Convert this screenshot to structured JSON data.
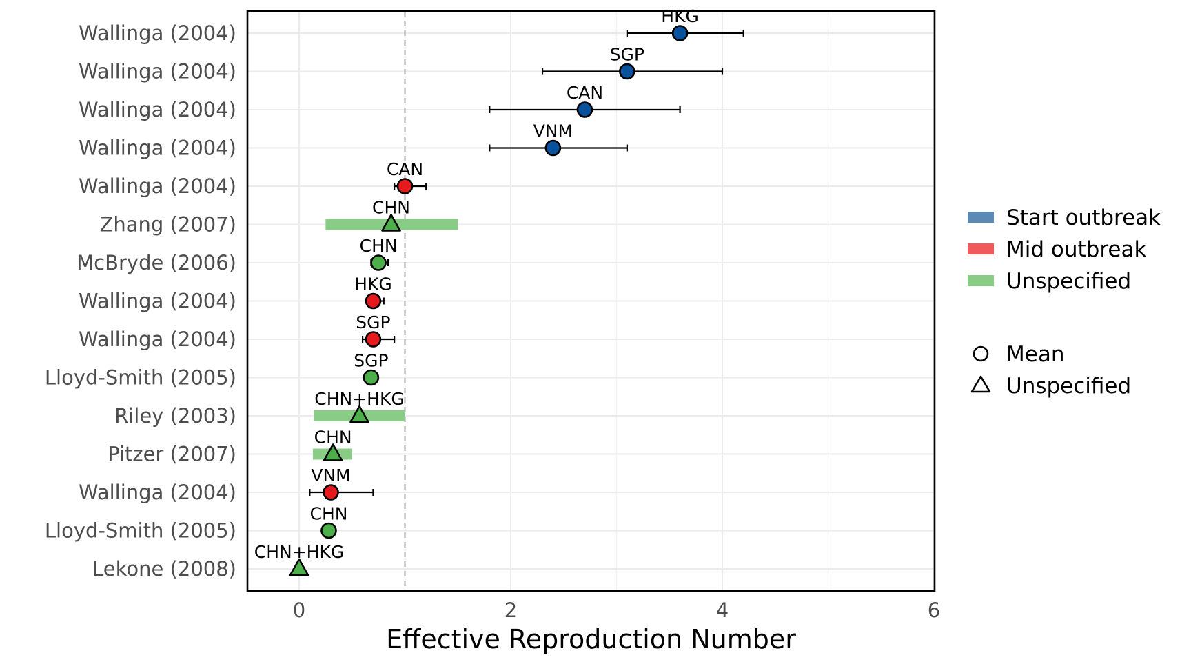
{
  "chart_data": {
    "type": "scatter",
    "title": "",
    "xlabel": "Effective Reproduction Number",
    "ylabel": "",
    "xlim": [
      -0.5,
      6
    ],
    "xticks": [
      0,
      2,
      4,
      6
    ],
    "reference_line_x": 1,
    "grid": true,
    "legend_position": "right",
    "colors": {
      "Start outbreak": "#08519c",
      "Mid outbreak": "#e41a1c",
      "Unspecified": "#4daf4a",
      "legend_Start outbreak": "#5b89b6",
      "legend_Mid outbreak": "#f05a5c",
      "legend_Unspecified": "#88cc85"
    },
    "legend": {
      "fill": [
        "Start outbreak",
        "Mid outbreak",
        "Unspecified"
      ],
      "shape": [
        {
          "label": "Mean",
          "symbol": "circle"
        },
        {
          "label": "Unspecified",
          "symbol": "triangle"
        }
      ]
    },
    "points": [
      {
        "study": "Wallinga (2004)",
        "label": "HKG",
        "category": "Start outbreak",
        "shape": "circle",
        "x": 3.6,
        "lo": 3.1,
        "hi": 4.2,
        "range": false
      },
      {
        "study": "Wallinga (2004)",
        "label": "SGP",
        "category": "Start outbreak",
        "shape": "circle",
        "x": 3.1,
        "lo": 2.3,
        "hi": 4.0,
        "range": false
      },
      {
        "study": "Wallinga (2004)",
        "label": "CAN",
        "category": "Start outbreak",
        "shape": "circle",
        "x": 2.7,
        "lo": 1.8,
        "hi": 3.6,
        "range": false
      },
      {
        "study": "Wallinga (2004)",
        "label": "VNM",
        "category": "Start outbreak",
        "shape": "circle",
        "x": 2.4,
        "lo": 1.8,
        "hi": 3.1,
        "range": false
      },
      {
        "study": "Wallinga (2004)",
        "label": "CAN",
        "category": "Mid outbreak",
        "shape": "circle",
        "x": 1.0,
        "lo": 0.9,
        "hi": 1.2,
        "range": false
      },
      {
        "study": "Zhang (2007)",
        "label": "CHN",
        "category": "Unspecified",
        "shape": "triangle",
        "x": 0.87,
        "lo": 0.25,
        "hi": 1.5,
        "range": true
      },
      {
        "study": "McBryde (2006)",
        "label": "CHN",
        "category": "Unspecified",
        "shape": "circle",
        "x": 0.75,
        "lo": 0.68,
        "hi": 0.84,
        "range": false
      },
      {
        "study": "Wallinga (2004)",
        "label": "HKG",
        "category": "Mid outbreak",
        "shape": "circle",
        "x": 0.7,
        "lo": 0.65,
        "hi": 0.8,
        "range": false
      },
      {
        "study": "Wallinga (2004)",
        "label": "SGP",
        "category": "Mid outbreak",
        "shape": "circle",
        "x": 0.7,
        "lo": 0.6,
        "hi": 0.9,
        "range": false
      },
      {
        "study": "Lloyd-Smith (2005)",
        "label": "SGP",
        "category": "Unspecified",
        "shape": "circle",
        "x": 0.68,
        "lo": null,
        "hi": null,
        "range": false
      },
      {
        "study": "Riley (2003)",
        "label": "CHN+HKG",
        "category": "Unspecified",
        "shape": "triangle",
        "x": 0.57,
        "lo": 0.14,
        "hi": 1.0,
        "range": true
      },
      {
        "study": "Pitzer (2007)",
        "label": "CHN",
        "category": "Unspecified",
        "shape": "triangle",
        "x": 0.32,
        "lo": 0.13,
        "hi": 0.5,
        "range": true
      },
      {
        "study": "Wallinga (2004)",
        "label": "VNM",
        "category": "Mid outbreak",
        "shape": "circle",
        "x": 0.3,
        "lo": 0.1,
        "hi": 0.7,
        "range": false
      },
      {
        "study": "Lloyd-Smith (2005)",
        "label": "CHN",
        "category": "Unspecified",
        "shape": "circle",
        "x": 0.28,
        "lo": null,
        "hi": null,
        "range": false
      },
      {
        "study": "Lekone (2008)",
        "label": "CHN+HKG",
        "category": "Unspecified",
        "shape": "triangle",
        "x": 0.0,
        "lo": null,
        "hi": null,
        "range": false
      }
    ]
  }
}
